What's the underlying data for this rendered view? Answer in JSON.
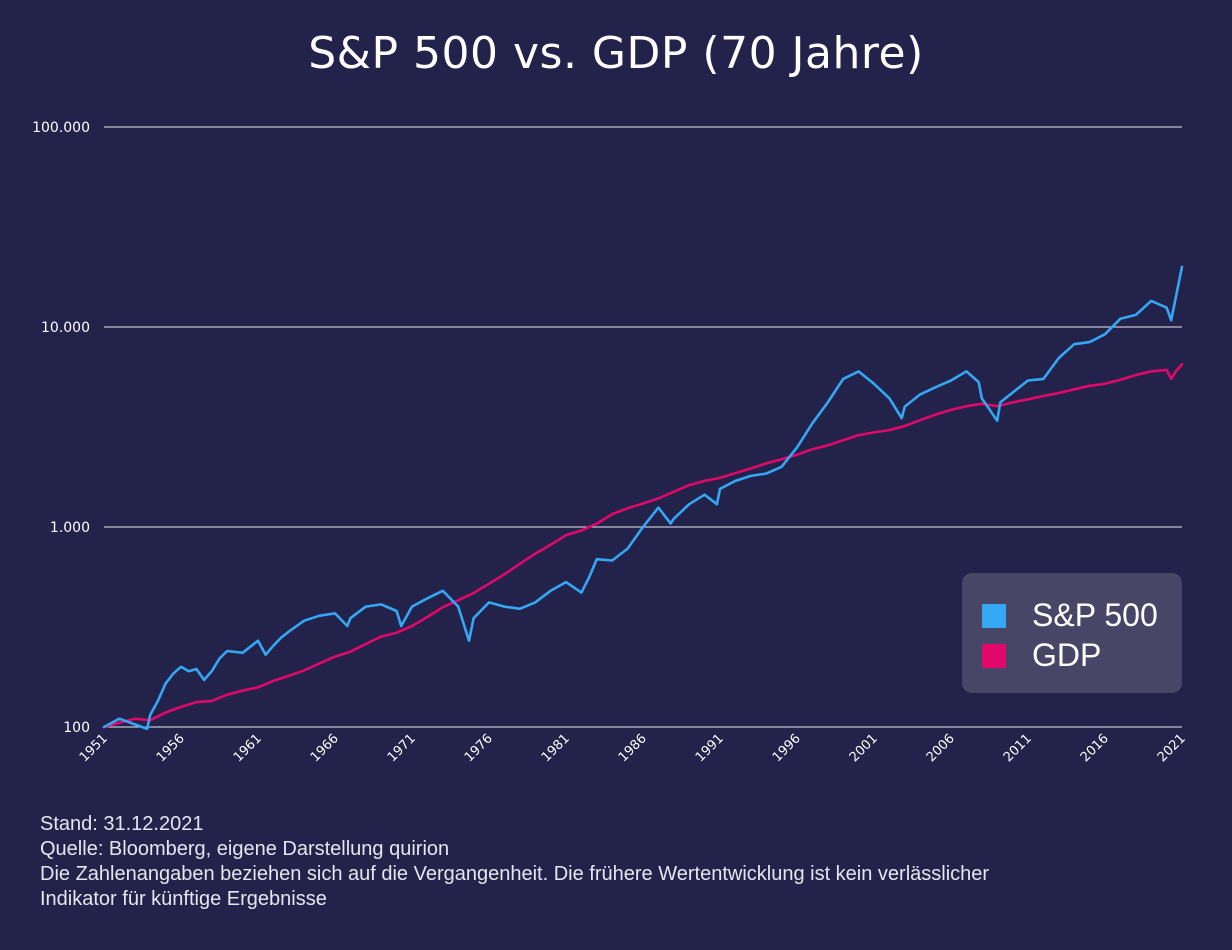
{
  "chart_data": {
    "type": "line",
    "title": "S&P 500 vs. GDP (70 Jahre)",
    "xlabel": "",
    "ylabel": "",
    "y_scale": "log",
    "ylim": [
      100,
      100000
    ],
    "xlim": [
      1951,
      2021
    ],
    "y_ticks": [
      {
        "value": 100,
        "label": "100"
      },
      {
        "value": 1000,
        "label": "1.000"
      },
      {
        "value": 10000,
        "label": "10.000"
      },
      {
        "value": 100000,
        "label": "100.000"
      }
    ],
    "x_ticks": [
      "1951",
      "1956",
      "1961",
      "1966",
      "1971",
      "1976",
      "1981",
      "1986",
      "1991",
      "1996",
      "2001",
      "2006",
      "2011",
      "2016",
      "2021"
    ],
    "grid": true,
    "legend_position": "right",
    "series": [
      {
        "name": "S&P 500",
        "color": "#35a8f5",
        "x": [
          1951,
          1952,
          1953,
          1953.8,
          1954,
          1954.5,
          1955,
          1955.5,
          1956,
          1956.5,
          1957,
          1957.5,
          1958,
          1958.5,
          1959,
          1960,
          1961,
          1961.5,
          1962,
          1962.5,
          1963,
          1964,
          1965,
          1966,
          1966.8,
          1967,
          1968,
          1969,
          1970,
          1970.3,
          1971,
          1972,
          1973,
          1974,
          1974.7,
          1975,
          1976,
          1977,
          1978,
          1979,
          1980,
          1981,
          1982,
          1982.5,
          1983,
          1984,
          1985,
          1986,
          1987,
          1987.8,
          1988,
          1989,
          1990,
          1990.8,
          1991,
          1992,
          1993,
          1994,
          1995,
          1996,
          1997,
          1998,
          1999,
          2000,
          2001,
          2002,
          2002.8,
          2003,
          2004,
          2005,
          2006,
          2007,
          2007.8,
          2008,
          2009,
          2009.2,
          2010,
          2011,
          2012,
          2013,
          2014,
          2015,
          2016,
          2017,
          2018,
          2019,
          2020,
          2020.3,
          2021
        ],
        "values": [
          100,
          110,
          103,
          98,
          115,
          135,
          165,
          185,
          200,
          190,
          195,
          172,
          190,
          220,
          240,
          235,
          270,
          230,
          255,
          280,
          300,
          340,
          360,
          370,
          320,
          350,
          400,
          410,
          380,
          320,
          400,
          440,
          480,
          400,
          270,
          350,
          420,
          400,
          390,
          420,
          480,
          530,
          470,
          560,
          690,
          680,
          780,
          1000,
          1250,
          1040,
          1100,
          1300,
          1450,
          1300,
          1550,
          1700,
          1800,
          1850,
          2000,
          2500,
          3300,
          4200,
          5500,
          6000,
          5200,
          4400,
          3500,
          4000,
          4600,
          5000,
          5400,
          6000,
          5300,
          4400,
          3400,
          4200,
          4700,
          5400,
          5500,
          7000,
          8200,
          8400,
          9200,
          11000,
          11500,
          13500,
          12500,
          10800,
          20000
        ]
      },
      {
        "name": "GDP",
        "color": "#e0086a",
        "x": [
          1951,
          1952,
          1953,
          1954,
          1955,
          1956,
          1957,
          1958,
          1959,
          1960,
          1961,
          1962,
          1963,
          1964,
          1965,
          1966,
          1967,
          1968,
          1969,
          1970,
          1971,
          1972,
          1973,
          1974,
          1975,
          1976,
          1977,
          1978,
          1979,
          1980,
          1981,
          1982,
          1983,
          1984,
          1985,
          1986,
          1987,
          1988,
          1989,
          1990,
          1991,
          1992,
          1993,
          1994,
          1995,
          1996,
          1997,
          1998,
          1999,
          2000,
          2001,
          2002,
          2003,
          2004,
          2005,
          2006,
          2007,
          2008,
          2009,
          2010,
          2011,
          2012,
          2013,
          2014,
          2015,
          2016,
          2017,
          2018,
          2019,
          2020,
          2020.3,
          2020.6,
          2021
        ],
        "values": [
          100,
          105,
          110,
          108,
          118,
          126,
          133,
          135,
          145,
          152,
          158,
          170,
          180,
          192,
          208,
          225,
          238,
          260,
          283,
          296,
          320,
          355,
          397,
          430,
          468,
          520,
          580,
          655,
          735,
          815,
          910,
          960,
          1040,
          1160,
          1240,
          1310,
          1390,
          1500,
          1620,
          1700,
          1760,
          1860,
          1960,
          2080,
          2180,
          2300,
          2450,
          2560,
          2720,
          2880,
          2970,
          3050,
          3200,
          3420,
          3650,
          3850,
          4020,
          4130,
          4020,
          4200,
          4350,
          4520,
          4680,
          4880,
          5080,
          5200,
          5450,
          5750,
          6000,
          6100,
          5500,
          6000,
          6500
        ]
      }
    ]
  },
  "footer": {
    "stand": "Stand: 31.12.2021",
    "quelle": "Quelle: Bloomberg, eigene Darstellung quirion",
    "disclaimer_1": "Die Zahlenangaben beziehen sich auf die Vergangenheit. Die frühere Wertentwicklung ist kein verlässlicher",
    "disclaimer_2": "Indikator für künftige Ergebnisse"
  }
}
